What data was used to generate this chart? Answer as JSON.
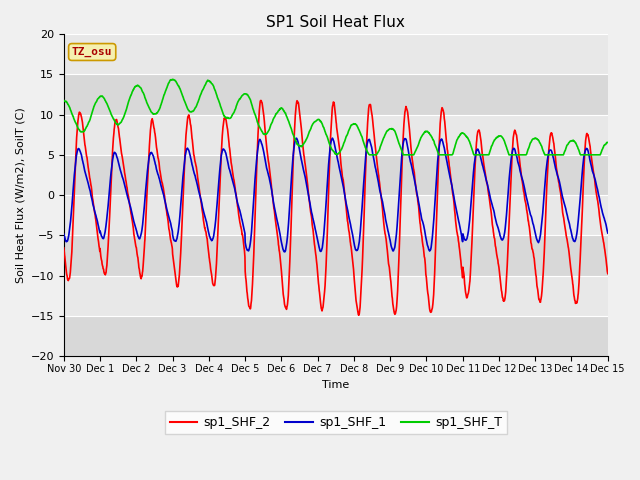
{
  "title": "SP1 Soil Heat Flux",
  "xlabel": "Time",
  "ylabel": "Soil Heat Flux (W/m2), SoilT (C)",
  "ylim": [
    -20,
    20
  ],
  "yticks": [
    -20,
    -15,
    -10,
    -5,
    0,
    5,
    10,
    15,
    20
  ],
  "color_red": "#ff0000",
  "color_blue": "#0000cc",
  "color_green": "#00cc00",
  "legend_labels": [
    "sp1_SHF_2",
    "sp1_SHF_1",
    "sp1_SHF_T"
  ],
  "tz_label": "TZ_osu",
  "plot_bg": "#e8e8e8",
  "fig_bg": "#f0f0f0",
  "title_fontsize": 11,
  "axis_fontsize": 8,
  "tick_fontsize": 8,
  "xtick_labels": [
    "Nov 30",
    "Dec 1",
    "Dec 2",
    "Dec 3",
    "Dec 4",
    "Dec 5",
    "Dec 6",
    "Dec 7",
    "Dec 8",
    "Dec 9",
    "Dec 10",
    "Dec 11",
    "Dec 12",
    "Dec 13",
    "Dec 14",
    "Dec 15"
  ],
  "linewidth": 1.2
}
